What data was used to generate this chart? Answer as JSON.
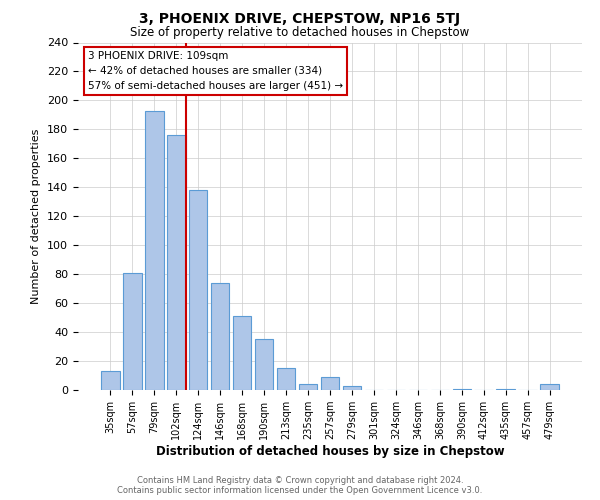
{
  "title": "3, PHOENIX DRIVE, CHEPSTOW, NP16 5TJ",
  "subtitle": "Size of property relative to detached houses in Chepstow",
  "xlabel": "Distribution of detached houses by size in Chepstow",
  "ylabel": "Number of detached properties",
  "bar_labels": [
    "35sqm",
    "57sqm",
    "79sqm",
    "102sqm",
    "124sqm",
    "146sqm",
    "168sqm",
    "190sqm",
    "213sqm",
    "235sqm",
    "257sqm",
    "279sqm",
    "301sqm",
    "324sqm",
    "346sqm",
    "368sqm",
    "390sqm",
    "412sqm",
    "435sqm",
    "457sqm",
    "479sqm"
  ],
  "bar_values": [
    13,
    81,
    193,
    176,
    138,
    74,
    51,
    35,
    15,
    4,
    9,
    3,
    0,
    0,
    0,
    0,
    1,
    0,
    1,
    0,
    4
  ],
  "bar_color": "#aec6e8",
  "bar_edge_color": "#5b9bd5",
  "annotation_title": "3 PHOENIX DRIVE: 109sqm",
  "annotation_line1": "← 42% of detached houses are smaller (334)",
  "annotation_line2": "57% of semi-detached houses are larger (451) →",
  "annotation_box_color": "#ffffff",
  "annotation_box_edge": "#cc0000",
  "vline_color": "#cc0000",
  "ylim": [
    0,
    240
  ],
  "yticks": [
    0,
    20,
    40,
    60,
    80,
    100,
    120,
    140,
    160,
    180,
    200,
    220,
    240
  ],
  "footer_line1": "Contains HM Land Registry data © Crown copyright and database right 2024.",
  "footer_line2": "Contains public sector information licensed under the Open Government Licence v3.0.",
  "background_color": "#ffffff",
  "grid_color": "#cccccc"
}
